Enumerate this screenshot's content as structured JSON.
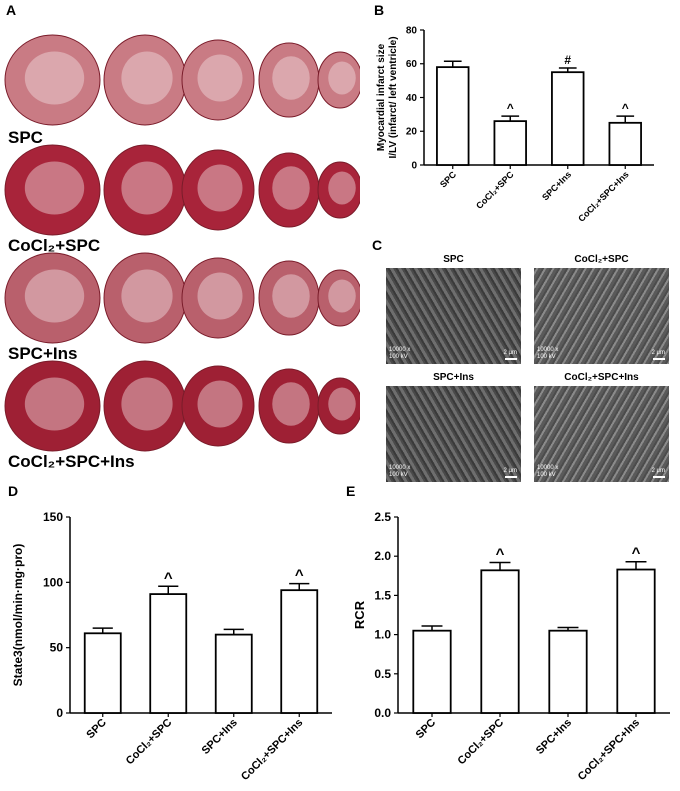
{
  "panel_a": {
    "letter": "A",
    "groups": [
      {
        "label": "SPC",
        "color": "#c97b84",
        "slices": 5
      },
      {
        "label": "CoCl₂+SPC",
        "color": "#a8243a",
        "slices": 5
      },
      {
        "label": "SPC+Ins",
        "color": "#b9606c",
        "slices": 5
      },
      {
        "label": "CoCl₂+SPC+Ins",
        "color": "#9e2034",
        "slices": 5
      }
    ]
  },
  "panel_c": {
    "letter": "C",
    "images": [
      {
        "title": "SPC",
        "scale_text": "10000 x\n100 kV",
        "scalebar": "2 μm"
      },
      {
        "title": "CoCl₂+SPC",
        "scale_text": "10000 x\n100 kV",
        "scalebar": "2 μm"
      },
      {
        "title": "SPC+Ins",
        "scale_text": "10000 x\n100 kV",
        "scalebar": "2 μm"
      },
      {
        "title": "CoCl₂+SPC+Ins",
        "scale_text": "10000 x\n100 kV",
        "scalebar": "2 μm"
      }
    ]
  },
  "chart_data": [
    {
      "panel": "B",
      "type": "bar",
      "categories": [
        "SPC",
        "CoCl₂+SPC",
        "SPC+Ins",
        "CoCl₂+SPC+Ins"
      ],
      "values": [
        58,
        26,
        55,
        25
      ],
      "errors": [
        3.5,
        3,
        2.5,
        4
      ],
      "annotations": [
        "",
        "^",
        "#",
        "^"
      ],
      "ylabel": "Myocardial infarct size\nI/LV (infarct/ left ventricle)",
      "ylim": [
        0,
        80
      ],
      "yticks": [
        0,
        20,
        40,
        60,
        80
      ]
    },
    {
      "panel": "D",
      "type": "bar",
      "categories": [
        "SPC",
        "CoCl₂+SPC",
        "SPC+Ins",
        "CoCl₂+SPC+Ins"
      ],
      "values": [
        61,
        91,
        60,
        94
      ],
      "errors": [
        4,
        6,
        4,
        5
      ],
      "annotations": [
        "",
        "^",
        "",
        "^"
      ],
      "ylabel": "State3(nmol/min·mg·pro)",
      "ylim": [
        0,
        150
      ],
      "yticks": [
        0,
        50,
        100,
        150
      ]
    },
    {
      "panel": "E",
      "type": "bar",
      "categories": [
        "SPC",
        "CoCl₂+SPC",
        "SPC+Ins",
        "CoCl₂+SPC+Ins"
      ],
      "values": [
        1.05,
        1.82,
        1.05,
        1.83
      ],
      "errors": [
        0.06,
        0.1,
        0.04,
        0.1
      ],
      "annotations": [
        "",
        "^",
        "",
        "^"
      ],
      "ylabel": "RCR",
      "ylim": [
        0,
        2.5
      ],
      "yticks": [
        "0.0",
        "0.5",
        "1.0",
        "1.5",
        "2.0",
        "2.5"
      ]
    }
  ]
}
